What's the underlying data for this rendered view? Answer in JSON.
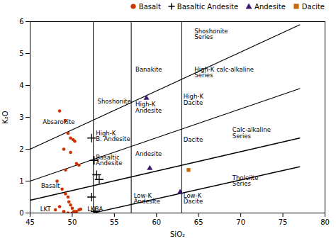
{
  "chart_data": {
    "type": "scatter",
    "xlabel": "SiO₂",
    "ylabel": "K₂O",
    "xlim": [
      45,
      80
    ],
    "ylim": [
      0,
      6
    ],
    "xticks": [
      45,
      50,
      55,
      60,
      65,
      70,
      75,
      80
    ],
    "yticks": [
      0,
      1,
      2,
      3,
      4,
      5,
      6
    ],
    "legend": "upper right",
    "series": [
      {
        "name": "Basalt",
        "color": "#cc3300",
        "marker": "circle",
        "values": [
          [
            48.5,
            3.2
          ],
          [
            49.2,
            2.9
          ],
          [
            49.5,
            2.5
          ],
          [
            49.8,
            2.35
          ],
          [
            50.1,
            2.3
          ],
          [
            50.3,
            2.25
          ],
          [
            49.0,
            2.0
          ],
          [
            49.8,
            1.9
          ],
          [
            50.5,
            1.55
          ],
          [
            50.8,
            1.5
          ],
          [
            49.2,
            1.35
          ],
          [
            48.2,
            1.0
          ],
          [
            48.8,
            0.75
          ],
          [
            49.2,
            0.6
          ],
          [
            49.5,
            0.5
          ],
          [
            49.6,
            0.35
          ],
          [
            49.8,
            0.25
          ],
          [
            50.0,
            0.15
          ],
          [
            50.2,
            0.05
          ],
          [
            50.5,
            0.05
          ],
          [
            50.8,
            0.1
          ],
          [
            51.0,
            0.12
          ],
          [
            48.5,
            0.2
          ],
          [
            48.0,
            0.1
          ],
          [
            49.0,
            0.05
          ],
          [
            49.5,
            0.0
          ],
          [
            50.0,
            0.0
          ]
        ]
      },
      {
        "name": "Basaltic Andesite",
        "color": "#000000",
        "marker": "plus",
        "values": [
          [
            52.3,
            2.35
          ],
          [
            52.6,
            1.65
          ],
          [
            52.9,
            1.2
          ],
          [
            53.2,
            1.05
          ],
          [
            52.3,
            0.5
          ],
          [
            52.7,
            0.05
          ]
        ]
      },
      {
        "name": "Andesite",
        "color": "#3d1a6e",
        "marker": "triangle",
        "values": [
          [
            58.8,
            3.6
          ],
          [
            59.2,
            1.4
          ],
          [
            62.8,
            0.65
          ]
        ]
      },
      {
        "name": "Dacite",
        "color": "#cc6600",
        "marker": "square",
        "values": [
          [
            63.8,
            1.35
          ]
        ]
      }
    ],
    "vertical_lines": [
      52.5,
      57.0,
      63.0
    ],
    "lines": [
      {
        "points": [
          [
            45,
            2.0
          ],
          [
            77,
            5.9
          ]
        ]
      },
      {
        "points": [
          [
            45,
            1.0
          ],
          [
            77,
            3.9
          ]
        ]
      },
      {
        "points": [
          [
            45,
            0.4
          ],
          [
            77,
            2.35
          ]
        ]
      },
      {
        "points": [
          [
            52.5,
            0.0
          ],
          [
            77,
            1.45
          ]
        ]
      }
    ],
    "annotations": [
      {
        "text": "Shoshonite\nSeries",
        "x": 64.5,
        "y": 5.6
      },
      {
        "text": "High-K calc-alkaline\nSeries",
        "x": 64.5,
        "y": 4.4
      },
      {
        "text": "Calc-alkaline\nSeries",
        "x": 69.0,
        "y": 2.5
      },
      {
        "text": "Tholeiite\nSeries",
        "x": 69.0,
        "y": 1.0
      },
      {
        "text": "Absarokite",
        "x": 46.5,
        "y": 2.85
      },
      {
        "text": "Shoshonite",
        "x": 53.0,
        "y": 3.5
      },
      {
        "text": "Banakite",
        "x": 57.5,
        "y": 4.5
      },
      {
        "text": "High-K\nAndesite",
        "x": 57.5,
        "y": 3.3
      },
      {
        "text": "High-K\nDacite",
        "x": 63.2,
        "y": 3.55
      },
      {
        "text": "High-K\nB. Andesite",
        "x": 52.8,
        "y": 2.4
      },
      {
        "text": "Basaltic\nAndesite",
        "x": 52.8,
        "y": 1.65
      },
      {
        "text": "Andesite",
        "x": 57.5,
        "y": 1.85
      },
      {
        "text": "Dacite",
        "x": 63.2,
        "y": 2.3
      },
      {
        "text": "Basalt",
        "x": 46.3,
        "y": 0.85
      },
      {
        "text": "Low-K\nAndesite",
        "x": 57.3,
        "y": 0.45
      },
      {
        "text": "Low-K\nDacite",
        "x": 63.2,
        "y": 0.45
      },
      {
        "text": "LKT",
        "x": 46.2,
        "y": 0.12
      },
      {
        "text": "LKBA",
        "x": 51.8,
        "y": 0.12
      }
    ]
  }
}
